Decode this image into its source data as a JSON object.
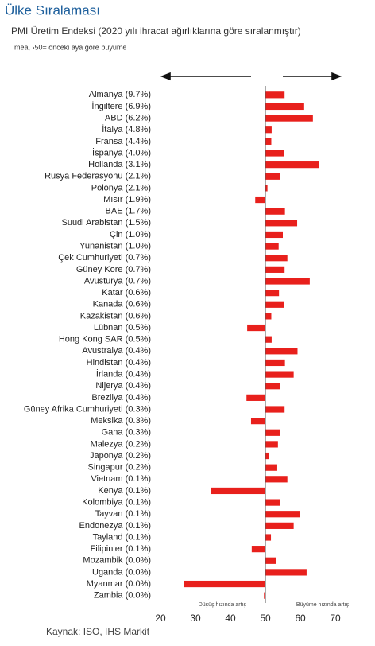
{
  "chart_data": {
    "type": "barh",
    "title": "Ülke Sıralaması",
    "subtitle": "PMI Üretim Endeksi (2020 yılı ihracat ağırlıklarına göre sıralanmıştır)",
    "note": "mea, ›50= önceki aya göre büyüme",
    "source": "Kaynak: ISO, IHS Markit",
    "annotations": [
      "Düşüş hızında artış",
      "Büyüme hızında artış"
    ],
    "categories": [
      "Almanya (9.7%)",
      "İngiltere (6.9%)",
      "ABD (6.2%)",
      "İtalya (4.8%)",
      "Fransa (4.4%)",
      "İspanya (4.0%)",
      "Hollanda (3.1%)",
      "Rusya Federasyonu (2.1%)",
      "Polonya (2.1%)",
      "Mısır (1.9%)",
      "BAE (1.7%)",
      "Suudi Arabistan (1.5%)",
      "Çin (1.0%)",
      "Yunanistan (1.0%)",
      "Çek Cumhuriyeti (0.7%)",
      "Güney Kore (0.7%)",
      "Avusturya (0.7%)",
      "Katar (0.6%)",
      "Kanada (0.6%)",
      "Kazakistan (0.6%)",
      "Lübnan (0.5%)",
      "Hong Kong SAR (0.5%)",
      "Avustralya (0.4%)",
      "Hindistan (0.4%)",
      "İrlanda (0.4%)",
      "Nijerya (0.4%)",
      "Brezilya (0.4%)",
      "Güney Afrika Cumhuriyeti (0.3%)",
      "Meksika (0.3%)",
      "Gana (0.3%)",
      "Malezya (0.2%)",
      "Japonya (0.2%)",
      "Singapur (0.2%)",
      "Vietnam (0.1%)",
      "Kenya (0.1%)",
      "Kolombiya (0.1%)",
      "Tayvan (0.1%)",
      "Endonezya (0.1%)",
      "Tayland (0.1%)",
      "Filipinler (0.1%)",
      "Mozambik (0.0%)",
      "Uganda (0.0%)",
      "Myanmar (0.0%)",
      "Zambia (0.0%)"
    ],
    "values": [
      55.5,
      61.1,
      63.6,
      51.8,
      51.7,
      55.4,
      65.4,
      54.3,
      50.6,
      47.1,
      55.6,
      59.1,
      55.0,
      53.8,
      56.3,
      55.5,
      62.7,
      53.9,
      55.3,
      51.7,
      44.8,
      51.8,
      59.2,
      55.6,
      58.1,
      54.1,
      44.6,
      55.5,
      45.9,
      54.2,
      53.6,
      51.0,
      53.4,
      56.3,
      34.5,
      54.3,
      60.0,
      58.1,
      51.6,
      46.1,
      53.0,
      61.8,
      26.6,
      49.6
    ],
    "baseline": 50,
    "color": "#e8201c",
    "xlim": [
      20,
      70
    ],
    "xticks": [
      20,
      30,
      40,
      50,
      60,
      70
    ],
    "grid": false
  }
}
